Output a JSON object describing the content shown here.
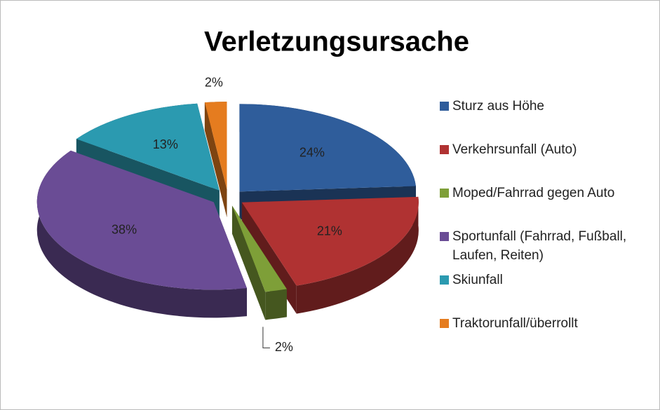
{
  "chart_data": {
    "type": "pie",
    "title": "Verletzungsursache",
    "categories": [
      "Sturz aus Höhe",
      "Verkehrsunfall (Auto)",
      "Moped/Fahrrad gegen Auto",
      "Sportunfall (Fahrrad, Fußball, Laufen, Reiten)",
      "Skiunfall",
      "Traktorunfall/überrollt"
    ],
    "values": [
      24,
      21,
      2,
      38,
      13,
      2
    ],
    "value_labels": [
      "24%",
      "21%",
      "2%",
      "38%",
      "13%",
      "2%"
    ],
    "colors": [
      "#2f5d9b",
      "#b03232",
      "#7e9f38",
      "#6a4c95",
      "#2b9ab0",
      "#e57c1f"
    ],
    "legend": "right"
  }
}
